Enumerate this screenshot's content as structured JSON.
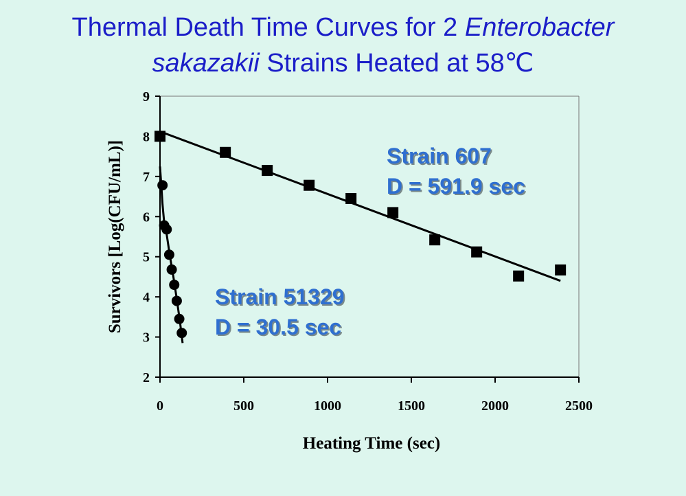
{
  "title": {
    "line1_prefix": "Thermal Death Time Curves for 2 ",
    "line1_italic": "Enterobacter",
    "line2_italic": "sakazakii",
    "line2_suffix": " Strains Heated at 58℃"
  },
  "chart_data": {
    "type": "scatter",
    "xlabel": "Heating Time (sec)",
    "ylabel": "Survivors [Log(CFU/mL)]",
    "xlim": [
      0,
      2500
    ],
    "ylim": [
      2,
      9
    ],
    "x_ticks": [
      0,
      500,
      1000,
      1500,
      2000,
      2500
    ],
    "y_ticks": [
      2,
      3,
      4,
      5,
      6,
      7,
      8,
      9
    ],
    "grid": false,
    "legend": "none",
    "series": [
      {
        "name": "Strain 607",
        "marker": "square",
        "color": "#000000",
        "x": [
          0,
          390,
          640,
          890,
          1140,
          1390,
          1640,
          1890,
          2140,
          2390
        ],
        "y": [
          8.0,
          7.6,
          7.15,
          6.78,
          6.45,
          6.1,
          5.42,
          5.12,
          4.52,
          4.67
        ],
        "fit": {
          "x": [
            0,
            2390
          ],
          "y": [
            8.12,
            4.4
          ]
        }
      },
      {
        "name": "Strain 51329",
        "marker": "circle",
        "color": "#000000",
        "x": [
          0,
          15,
          25,
          40,
          55,
          70,
          85,
          100,
          115,
          130
        ],
        "y": [
          8.0,
          6.78,
          5.78,
          5.68,
          5.05,
          4.68,
          4.3,
          3.9,
          3.45,
          3.1
        ],
        "fit": {
          "x": [
            0,
            8,
            15,
            25,
            40,
            60,
            80,
            100,
            120,
            135
          ],
          "y": [
            7.25,
            6.75,
            6.3,
            5.85,
            5.55,
            5.0,
            4.5,
            3.95,
            3.35,
            2.85
          ]
        }
      }
    ],
    "annotations": [
      {
        "lines": [
          "Strain 607",
          "D = 591.9 sec"
        ],
        "color": "#2f6fd0"
      },
      {
        "lines": [
          "Strain 51329",
          "D = 30.5 sec"
        ],
        "color": "#2f6fd0"
      }
    ]
  }
}
